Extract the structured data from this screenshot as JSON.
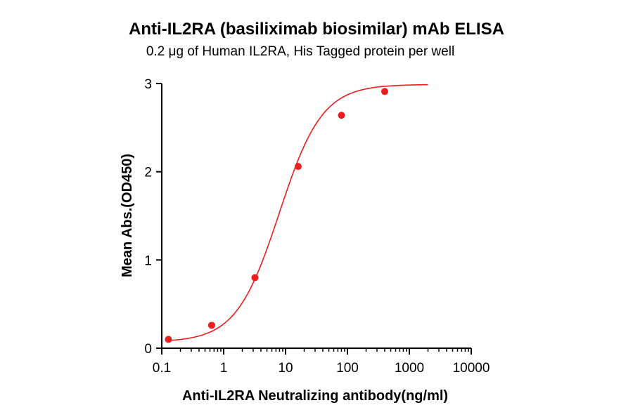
{
  "chart_data": {
    "type": "scatter",
    "title": "Anti-IL2RA (basiliximab biosimilar) mAb ELISA",
    "subtitle": "0.2 μg of Human IL2RA, His Tagged protein per well",
    "xlabel": "Anti-IL2RA Neutralizing antibody(ng/ml)",
    "ylabel": "Mean Abs.(OD450)",
    "x_scale": "log",
    "xlim": [
      0.1,
      10000
    ],
    "ylim": [
      0,
      3
    ],
    "x_ticks": [
      "0.1",
      "1",
      "10",
      "100",
      "1000",
      "10000"
    ],
    "x_tick_values": [
      0.1,
      1,
      10,
      100,
      1000,
      10000
    ],
    "y_ticks": [
      "0",
      "1",
      "2",
      "3"
    ],
    "y_tick_values": [
      0,
      1,
      2,
      3
    ],
    "grid": false,
    "series": [
      {
        "points": [
          {
            "x": 0.128,
            "y": 0.1
          },
          {
            "x": 0.64,
            "y": 0.26
          },
          {
            "x": 3.2,
            "y": 0.8
          },
          {
            "x": 16,
            "y": 2.06
          },
          {
            "x": 80,
            "y": 2.64
          },
          {
            "x": 400,
            "y": 2.91
          }
        ],
        "fit": {
          "type": "4PL",
          "bottom": 0.07,
          "top": 2.99,
          "ec50": 7.9,
          "hill": 1.25,
          "x_range": [
            0.128,
            2000
          ]
        },
        "color": "#ee1c1c"
      }
    ]
  }
}
